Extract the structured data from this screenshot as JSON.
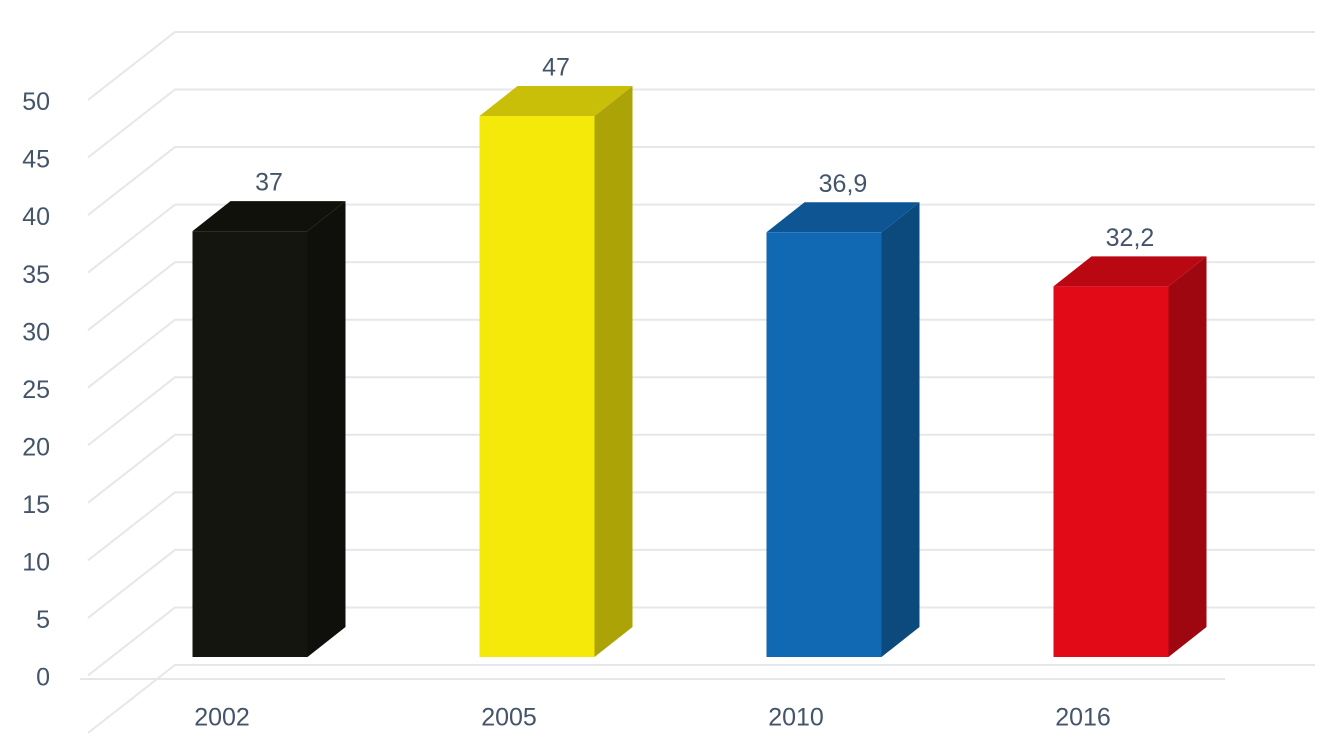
{
  "chart_data": {
    "type": "bar3d",
    "categories": [
      "2002",
      "2005",
      "2010",
      "2016"
    ],
    "values": [
      37,
      47,
      36.9,
      32.2
    ],
    "value_labels": [
      "37",
      "47",
      "36,9",
      "32,2"
    ],
    "colors": [
      "#15150f",
      "#f5e90a",
      "#1169b3",
      "#e30a17"
    ],
    "ylim": [
      0,
      55
    ],
    "yticks": [
      0,
      5,
      10,
      15,
      20,
      25,
      30,
      35,
      40,
      45,
      50
    ],
    "grid": true
  }
}
